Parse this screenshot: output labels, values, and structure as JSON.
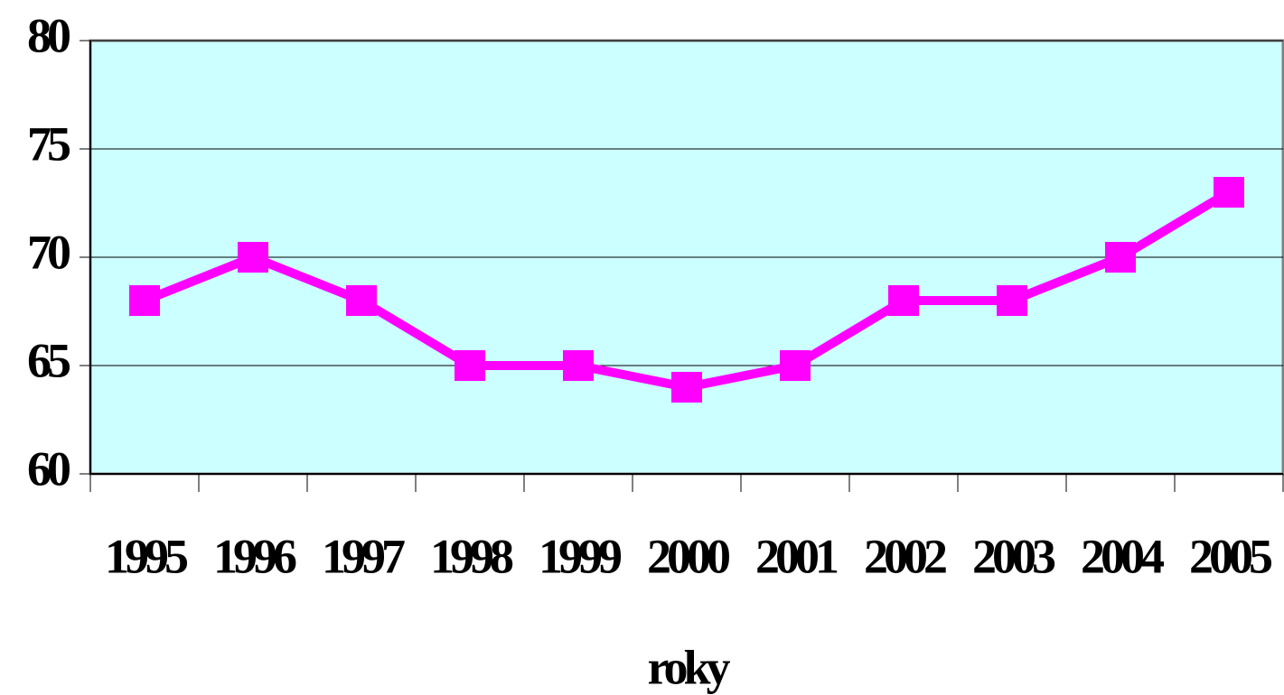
{
  "chart_data": {
    "type": "line",
    "categories": [
      "1995",
      "1996",
      "1997",
      "1998",
      "1999",
      "2000",
      "2001",
      "2002",
      "2003",
      "2004",
      "2005"
    ],
    "values": [
      68,
      70,
      68,
      65,
      65,
      64,
      65,
      68,
      68,
      70,
      73
    ],
    "color": "#ff00ff",
    "plot_background": "#ccffff",
    "x_label": "roky",
    "ylim": [
      60,
      80
    ],
    "yticks": [
      60,
      65,
      70,
      75,
      80
    ],
    "grid": true
  }
}
